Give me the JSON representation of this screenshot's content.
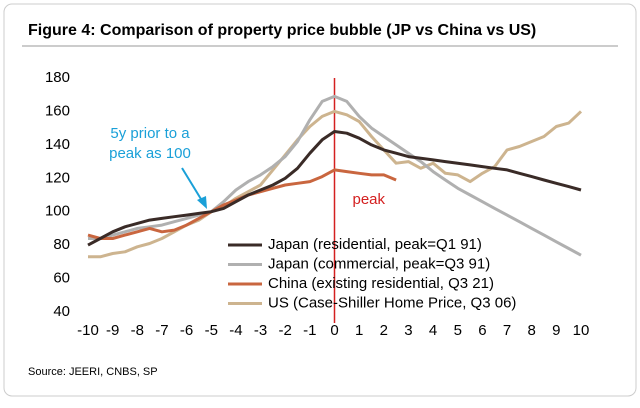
{
  "chart_data": {
    "type": "line",
    "title": "Figure 4: Comparison of property price bubble (JP vs China vs US)",
    "source": "Source: JEERI, CNBS, SP",
    "annotation": [
      "5y prior to a",
      "peak as 100"
    ],
    "reference_line": {
      "x": 0,
      "color": "#d42020",
      "label": "peak"
    },
    "x": [
      -10,
      -9.5,
      -9,
      -8.5,
      -8,
      -7.5,
      -7,
      -6.5,
      -6,
      -5.5,
      -5,
      -4.5,
      -4,
      -3.5,
      -3,
      -2.5,
      -2,
      -1.5,
      -1,
      -0.5,
      0,
      0.5,
      1,
      1.5,
      2,
      2.5,
      3,
      3.5,
      4,
      4.5,
      5,
      5.5,
      6,
      6.5,
      7,
      7.5,
      8,
      8.5,
      9,
      9.5,
      10
    ],
    "series": [
      {
        "name": "Japan (residential, peak=Q1 91)",
        "color": "#3a2b27",
        "values": [
          80,
          84,
          88,
          91,
          93,
          95,
          96,
          97,
          98,
          99,
          100,
          102,
          106,
          110,
          113,
          116,
          120,
          126,
          135,
          143,
          148,
          147,
          144,
          140,
          137,
          135,
          133,
          132,
          131,
          130,
          129,
          128,
          127,
          126,
          125,
          123,
          121,
          119,
          117,
          115,
          113
        ]
      },
      {
        "name": "Japan (commercial, peak=Q3 91)",
        "color": "#b0b0b0",
        "values": [
          84,
          84,
          86,
          88,
          90,
          91,
          92,
          94,
          96,
          98,
          100,
          106,
          113,
          118,
          122,
          127,
          133,
          142,
          155,
          166,
          169,
          166,
          157,
          150,
          145,
          140,
          135,
          130,
          124,
          119,
          114,
          110,
          106,
          102,
          98,
          94,
          90,
          86,
          82,
          78,
          74
        ]
      },
      {
        "name": "China (existing residential, Q3 21)",
        "color": "#c9663f",
        "values": [
          86,
          84,
          84,
          86,
          88,
          90,
          88,
          89,
          92,
          96,
          100,
          104,
          107,
          110,
          112,
          114,
          116,
          117,
          118,
          121,
          125,
          124,
          123,
          122,
          122,
          119,
          null,
          null,
          null,
          null,
          null,
          null,
          null,
          null,
          null,
          null,
          null,
          null,
          null,
          null,
          null
        ]
      },
      {
        "name": "US (Case-Shiller Home Price, Q3 06)",
        "color": "#cdb48f",
        "values": [
          73,
          73,
          75,
          76,
          79,
          81,
          84,
          88,
          92,
          95,
          100,
          103,
          108,
          112,
          116,
          125,
          134,
          143,
          151,
          157,
          160,
          158,
          154,
          145,
          137,
          129,
          130,
          126,
          129,
          123,
          122,
          118,
          123,
          127,
          137,
          139,
          142,
          145,
          151,
          153,
          160
        ]
      }
    ],
    "xlim": [
      -10,
      10
    ],
    "ylim": [
      40,
      180
    ],
    "xticks": [
      -10,
      -9,
      -8,
      -7,
      -6,
      -5,
      -4,
      -3,
      -2,
      -1,
      0,
      1,
      2,
      3,
      4,
      5,
      6,
      7,
      8,
      9,
      10
    ],
    "yticks": [
      40,
      60,
      80,
      100,
      120,
      140,
      160,
      180
    ],
    "grid": false,
    "legend": "lower right"
  }
}
